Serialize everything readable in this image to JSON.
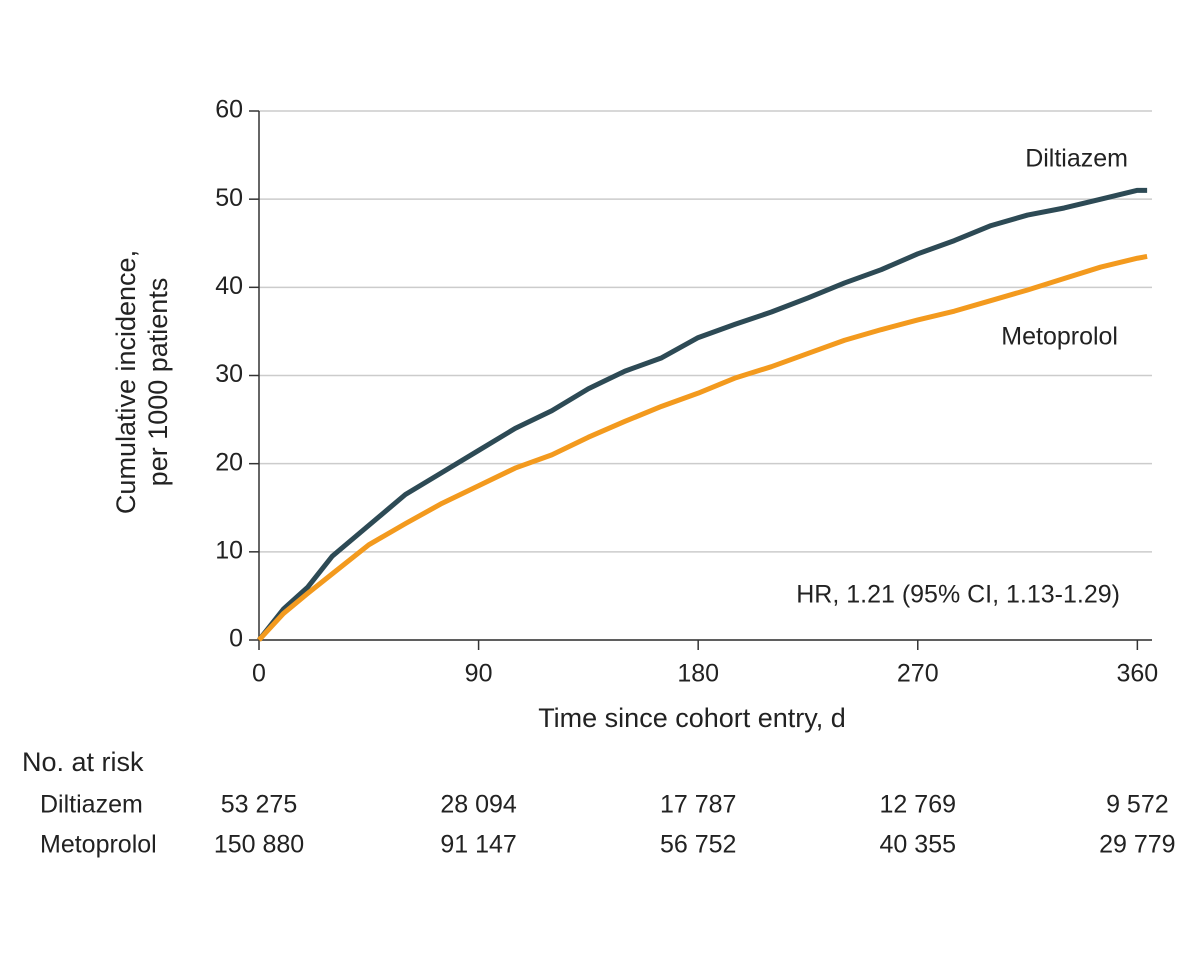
{
  "chart_data": {
    "type": "line",
    "ylabel": [
      "Cumulative incidence,",
      "per 1000 patients"
    ],
    "xlabel": "Time since cohort entry, d",
    "annotation": "HR, 1.21 (95% CI, 1.13-1.29)",
    "x": [
      0,
      10,
      20,
      30,
      45,
      60,
      75,
      90,
      105,
      120,
      135,
      150,
      165,
      180,
      195,
      210,
      225,
      240,
      255,
      270,
      285,
      300,
      315,
      330,
      345,
      360,
      364
    ],
    "series": [
      {
        "name": "Diltiazem",
        "color": "#2d4a55",
        "values": [
          0,
          3.5,
          6,
          9.5,
          13,
          16.5,
          19,
          21.5,
          24,
          26,
          28.5,
          30.5,
          32,
          34.3,
          35.8,
          37.2,
          38.8,
          40.5,
          42,
          43.8,
          45.3,
          47,
          48.2,
          49,
          50,
          51,
          51
        ]
      },
      {
        "name": "Metoprolol",
        "color": "#f39a1e",
        "values": [
          0,
          3,
          5.3,
          7.5,
          10.8,
          13.2,
          15.5,
          17.5,
          19.5,
          21,
          23,
          24.8,
          26.5,
          28,
          29.7,
          31,
          32.5,
          34,
          35.2,
          36.3,
          37.3,
          38.5,
          39.7,
          41,
          42.3,
          43.3,
          43.5
        ]
      }
    ],
    "xlim": [
      0,
      366
    ],
    "ylim": [
      0,
      60
    ],
    "xticks": [
      0,
      90,
      180,
      270,
      360
    ],
    "yticks": [
      0,
      10,
      20,
      30,
      40,
      50,
      60
    ],
    "grid": true,
    "risk_table": {
      "title": "No. at risk",
      "rows": [
        {
          "name": "Diltiazem",
          "values": [
            "53 275",
            "28 094",
            "17 787",
            "12 769",
            "9 572"
          ]
        },
        {
          "name": "Metoprolol",
          "values": [
            "150 880",
            "91 147",
            "56 752",
            "40 355",
            "29 779"
          ]
        }
      ]
    }
  }
}
